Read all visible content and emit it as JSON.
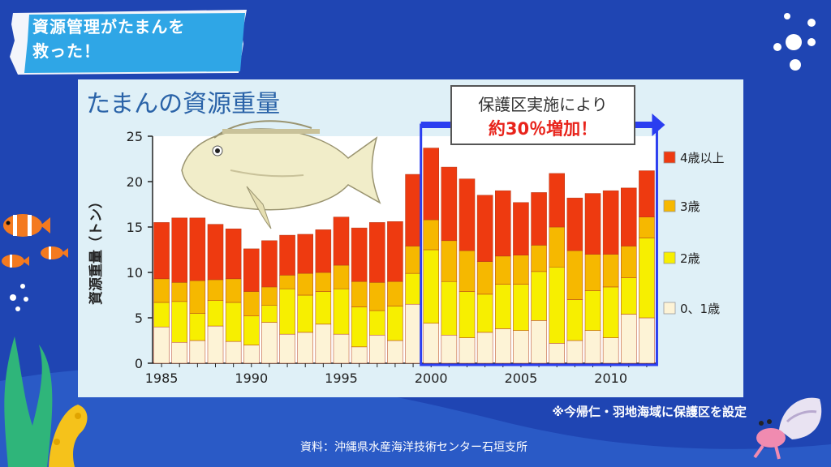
{
  "slide": {
    "title": "資源管理がたまんを\n救った！",
    "note": "※今帰仁・羽地海域に保護区を設定",
    "source": "資料：沖縄県水産海洋技術センター石垣支所"
  },
  "colors": {
    "background": "#1f45b3",
    "banner": "#ffffff",
    "title_text": "#ffffff",
    "highlight_border": "#2b3ef0",
    "callout_red": "#e8231b"
  },
  "chart_data": {
    "type": "bar",
    "stacked": true,
    "title": "たまんの資源重量",
    "ylabel": "資源重量（トン）",
    "xlabel": "",
    "ylim": [
      0,
      25
    ],
    "yticks": [
      0,
      5,
      10,
      15,
      20,
      25
    ],
    "xtick_labels": [
      "1985",
      "1990",
      "1995",
      "2000",
      "2005",
      "2010"
    ],
    "categories": [
      "1985",
      "1986",
      "1987",
      "1988",
      "1989",
      "1990",
      "1991",
      "1992",
      "1993",
      "1994",
      "1995",
      "1996",
      "1997",
      "1998",
      "1999",
      "2000",
      "2001",
      "2002",
      "2003",
      "2004",
      "2005",
      "2006",
      "2007",
      "2008",
      "2009",
      "2010",
      "2011",
      "2012"
    ],
    "series": [
      {
        "name": "0、1歳",
        "color": "#fdf3d6",
        "values": [
          4.0,
          2.3,
          2.5,
          4.1,
          2.4,
          2.0,
          4.5,
          3.2,
          3.4,
          4.3,
          3.2,
          1.8,
          3.1,
          2.5,
          6.5,
          4.4,
          3.1,
          2.8,
          3.4,
          3.8,
          3.6,
          4.7,
          2.2,
          2.5,
          3.6,
          2.8,
          5.4,
          5.0
        ]
      },
      {
        "name": "2歳",
        "color": "#f7ef00",
        "values": [
          2.7,
          4.5,
          3.0,
          2.8,
          4.3,
          3.2,
          1.9,
          5.0,
          4.1,
          3.6,
          5.0,
          4.4,
          2.7,
          3.8,
          3.4,
          8.1,
          5.9,
          5.1,
          4.2,
          4.9,
          5.1,
          5.4,
          8.4,
          4.5,
          4.4,
          5.6,
          4.0,
          8.8
        ]
      },
      {
        "name": "3歳",
        "color": "#f6b800",
        "values": [
          2.6,
          2.1,
          3.6,
          2.3,
          2.6,
          2.7,
          2.0,
          1.5,
          2.4,
          2.1,
          2.6,
          2.8,
          3.1,
          2.7,
          3.0,
          3.3,
          4.5,
          4.5,
          3.6,
          3.1,
          3.2,
          2.9,
          4.4,
          5.4,
          4.0,
          3.6,
          3.5,
          2.3
        ]
      },
      {
        "name": "4歳以上",
        "color": "#ee3a10",
        "values": [
          6.2,
          7.1,
          6.9,
          6.1,
          5.5,
          4.7,
          5.1,
          4.4,
          4.3,
          4.7,
          5.3,
          5.9,
          6.6,
          6.6,
          7.9,
          7.9,
          8.1,
          7.9,
          7.3,
          7.2,
          5.8,
          5.8,
          5.9,
          5.8,
          6.7,
          7.0,
          6.4,
          5.1
        ]
      }
    ],
    "legend_position": "right",
    "callout": {
      "line1": "保護区実施により",
      "line2": "約30％増加！"
    },
    "highlight_range": [
      "2000",
      "2012"
    ],
    "grid": false
  }
}
